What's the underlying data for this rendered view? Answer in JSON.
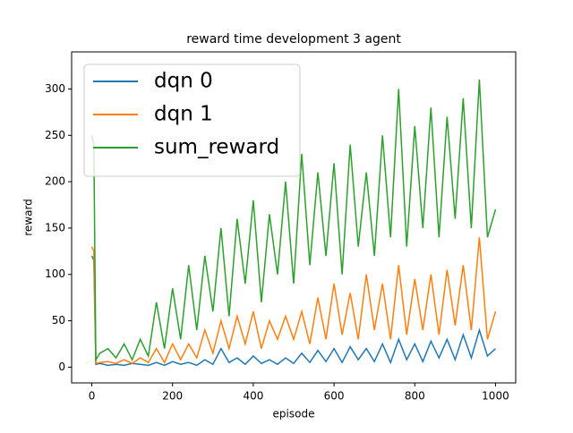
{
  "chart_data": {
    "type": "line",
    "title": "reward time development 3 agent",
    "x_label": "episode",
    "y_label": "reward",
    "x": [
      0,
      5,
      10,
      20,
      40,
      60,
      80,
      100,
      120,
      140,
      160,
      180,
      200,
      220,
      240,
      260,
      280,
      300,
      320,
      340,
      360,
      380,
      400,
      420,
      440,
      460,
      480,
      500,
      520,
      540,
      560,
      580,
      600,
      620,
      640,
      660,
      680,
      700,
      720,
      740,
      760,
      780,
      800,
      820,
      840,
      860,
      880,
      900,
      920,
      940,
      960,
      980,
      1000
    ],
    "series": [
      {
        "name": "dqn 0",
        "color": "#1f77b4",
        "values": [
          120,
          115,
          3,
          4,
          2,
          3,
          2,
          4,
          3,
          2,
          5,
          2,
          6,
          3,
          5,
          2,
          8,
          3,
          20,
          5,
          10,
          3,
          12,
          4,
          8,
          3,
          10,
          4,
          15,
          5,
          18,
          6,
          20,
          5,
          22,
          8,
          20,
          6,
          25,
          5,
          30,
          8,
          25,
          6,
          28,
          10,
          30,
          8,
          35,
          10,
          40,
          12,
          20
        ]
      },
      {
        "name": "dqn 1",
        "color": "#ff7f0e",
        "values": [
          130,
          125,
          4,
          5,
          6,
          4,
          8,
          4,
          10,
          5,
          20,
          5,
          25,
          8,
          25,
          10,
          40,
          15,
          50,
          20,
          55,
          25,
          60,
          20,
          50,
          30,
          55,
          30,
          60,
          25,
          75,
          30,
          90,
          35,
          80,
          30,
          100,
          40,
          90,
          30,
          110,
          35,
          95,
          40,
          100,
          35,
          105,
          45,
          110,
          40,
          140,
          30,
          60
        ]
      },
      {
        "name": "sum_reward",
        "color": "#2ca02c",
        "values": [
          250,
          240,
          8,
          15,
          20,
          10,
          25,
          8,
          30,
          12,
          70,
          20,
          85,
          30,
          110,
          40,
          120,
          60,
          150,
          55,
          160,
          90,
          180,
          70,
          165,
          100,
          200,
          90,
          230,
          110,
          210,
          120,
          220,
          100,
          240,
          130,
          210,
          120,
          250,
          140,
          300,
          130,
          260,
          150,
          280,
          140,
          270,
          160,
          290,
          150,
          310,
          140,
          170
        ]
      }
    ],
    "xlim": [
      -50,
      1050
    ],
    "xticks": [
      0,
      200,
      400,
      600,
      800,
      1000
    ],
    "ylim": [
      -17,
      340
    ],
    "yticks": [
      0,
      50,
      100,
      150,
      200,
      250,
      300
    ],
    "legend": "upper left",
    "grid": false
  }
}
